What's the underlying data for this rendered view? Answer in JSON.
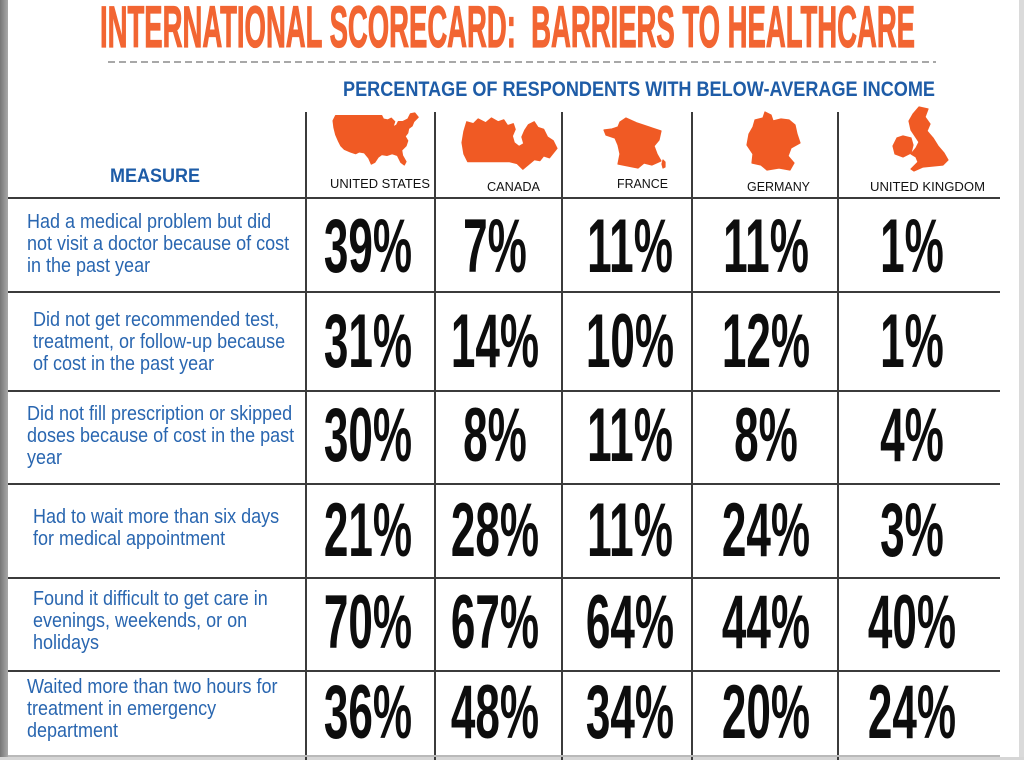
{
  "colors": {
    "title_orange": "#f26532",
    "heading_blue": "#1e5ca7",
    "label_blue": "#2966b0",
    "map_orange": "#f05a24",
    "value_black": "#0d0d0d",
    "rule_gray": "#3b3b3b",
    "divider_gray": "#8c8c8c"
  },
  "chart_data": {
    "type": "table",
    "title": "INTERNATIONAL SCORECARD:  BARRIERS TO HEALTHCARE",
    "subtitle": "PERCENTAGE OF RESPONDENTS WITH BELOW-AVERAGE INCOME",
    "row_header": "MEASURE",
    "columns": [
      {
        "name": "UNITED STATES",
        "icon": "united-states-map-icon"
      },
      {
        "name": "CANADA",
        "icon": "canada-map-icon"
      },
      {
        "name": "FRANCE",
        "icon": "france-map-icon"
      },
      {
        "name": "GERMANY",
        "icon": "germany-map-icon"
      },
      {
        "name": "UNITED KINGDOM",
        "icon": "united-kingdom-map-icon"
      }
    ],
    "unit": "%",
    "rows": [
      {
        "measure": [
          "Had a medical problem but did",
          "not visit a doctor because of cost",
          "in the past year"
        ],
        "values": [
          39,
          7,
          11,
          11,
          1
        ]
      },
      {
        "measure": [
          "Did not get recommended test,",
          "treatment, or follow-up because",
          "of cost in the past year"
        ],
        "values": [
          31,
          14,
          10,
          12,
          1
        ]
      },
      {
        "measure": [
          "Did not fill prescription or skipped",
          "doses because of cost in the past",
          "year"
        ],
        "values": [
          30,
          8,
          11,
          8,
          4
        ]
      },
      {
        "measure": [
          "Had to wait more than six days",
          "for medical appointment"
        ],
        "values": [
          21,
          28,
          11,
          24,
          3
        ]
      },
      {
        "measure": [
          "Found it difficult to get care in",
          "evenings, weekends, or on",
          "holidays"
        ],
        "values": [
          70,
          67,
          64,
          44,
          40
        ]
      },
      {
        "measure": [
          "Waited more than two hours for",
          "treatment in emergency",
          "department"
        ],
        "values": [
          36,
          48,
          34,
          20,
          24
        ]
      }
    ]
  }
}
